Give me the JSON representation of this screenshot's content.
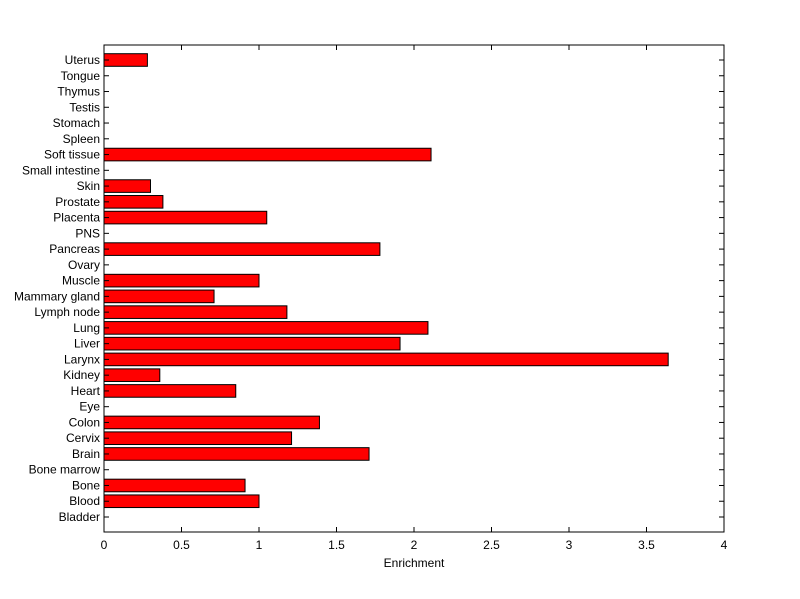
{
  "chart_data": {
    "type": "bar",
    "orientation": "horizontal",
    "categories": [
      "Bladder",
      "Blood",
      "Bone",
      "Bone marrow",
      "Brain",
      "Cervix",
      "Colon",
      "Eye",
      "Heart",
      "Kidney",
      "Larynx",
      "Liver",
      "Lung",
      "Lymph node",
      "Mammary gland",
      "Muscle",
      "Ovary",
      "Pancreas",
      "PNS",
      "Placenta",
      "Prostate",
      "Skin",
      "Small intestine",
      "Soft tissue",
      "Spleen",
      "Stomach",
      "Testis",
      "Thymus",
      "Tongue",
      "Uterus"
    ],
    "values": [
      0,
      1.0,
      0.91,
      0,
      1.71,
      1.21,
      1.39,
      0,
      0.85,
      0.36,
      3.64,
      1.91,
      2.09,
      1.18,
      0.71,
      1.0,
      0,
      1.78,
      0,
      1.05,
      0.38,
      0.3,
      0,
      2.11,
      0,
      0,
      0,
      0,
      0,
      0.28
    ],
    "title": "",
    "xlabel": "Enrichment",
    "ylabel": "",
    "xlim": [
      0,
      4
    ],
    "xticks": [
      0,
      0.5,
      1,
      1.5,
      2,
      2.5,
      3,
      3.5,
      4
    ],
    "xtick_labels": [
      "0",
      "0.5",
      "1",
      "1.5",
      "2",
      "2.5",
      "3",
      "3.5",
      "4"
    ],
    "grid": false,
    "legend": "none",
    "bar_color": "#ff0000",
    "edge_color": "#000000"
  }
}
